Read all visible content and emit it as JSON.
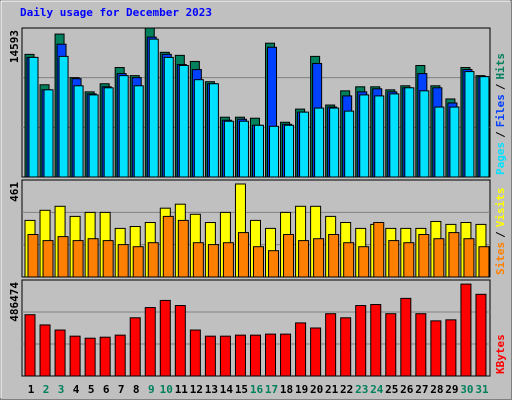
{
  "chart_data": [
    {
      "type": "bar",
      "title": "Daily usage for December 2023",
      "legend_separator": "/",
      "ylim": [
        0,
        14593
      ],
      "yticks": [
        14593
      ],
      "series": [
        {
          "name": "Hits",
          "color": "#00805c",
          "values": [
            12012,
            9034,
            13998,
            9729,
            8339,
            9133,
            10721,
            9927,
            14593,
            12210,
            11913,
            11317,
            9332,
            5857,
            5857,
            5758,
            13104,
            5361,
            6651,
            11813,
            7048,
            8438,
            8835,
            8835,
            8537,
            8934,
            10920,
            8934,
            7644,
            10721,
            9927
          ]
        },
        {
          "name": "Files",
          "color": "#0040ff",
          "values": [
            11714,
            8537,
            13005,
            9630,
            8140,
            8835,
            10126,
            9729,
            13700,
            12012,
            11019,
            10523,
            9133,
            5559,
            5659,
            5063,
            12707,
            5162,
            6353,
            11118,
            6850,
            7942,
            8339,
            8636,
            8339,
            8736,
            10126,
            8736,
            7247,
            10523,
            9828
          ]
        },
        {
          "name": "Pages",
          "color": "#00e0ff",
          "values": [
            11714,
            8537,
            11813,
            8934,
            8041,
            8736,
            9927,
            8934,
            13501,
            11714,
            10920,
            9530,
            9133,
            5460,
            5460,
            5063,
            4964,
            5063,
            6353,
            6750,
            6750,
            6452,
            8041,
            7942,
            8140,
            8736,
            8438,
            6850,
            6850,
            10324,
            9828
          ]
        }
      ]
    },
    {
      "type": "bar",
      "legend_separator": "/",
      "ylim": [
        0,
        461
      ],
      "yticks": [
        461
      ],
      "series": [
        {
          "name": "Visits",
          "color": "#ffff00",
          "values": [
            269,
            317,
            336,
            288,
            307,
            307,
            231,
            240,
            259,
            327,
            346,
            298,
            259,
            307,
            442,
            269,
            231,
            307,
            336,
            336,
            288,
            259,
            231,
            250,
            231,
            231,
            231,
            264,
            250,
            259,
            250
          ]
        },
        {
          "name": "Sites",
          "color": "#ff8000",
          "values": [
            202,
            173,
            192,
            173,
            182,
            173,
            154,
            144,
            163,
            288,
            269,
            163,
            154,
            163,
            211,
            144,
            125,
            202,
            173,
            182,
            202,
            163,
            144,
            259,
            173,
            163,
            202,
            182,
            211,
            182,
            144
          ]
        }
      ]
    },
    {
      "type": "bar",
      "ylim": [
        0,
        486474
      ],
      "yticks": [
        486474
      ],
      "categories": [
        "1",
        "2",
        "3",
        "4",
        "5",
        "6",
        "7",
        "8",
        "9",
        "10",
        "11",
        "12",
        "13",
        "14",
        "15",
        "16",
        "17",
        "18",
        "19",
        "20",
        "21",
        "22",
        "23",
        "24",
        "25",
        "26",
        "27",
        "28",
        "29",
        "30",
        "31"
      ],
      "category_colors": [
        "#000000",
        "#00805c",
        "#00805c",
        "#000000",
        "#000000",
        "#000000",
        "#000000",
        "#000000",
        "#00805c",
        "#00805c",
        "#000000",
        "#000000",
        "#000000",
        "#000000",
        "#000000",
        "#00805c",
        "#00805c",
        "#000000",
        "#000000",
        "#000000",
        "#000000",
        "#000000",
        "#00805c",
        "#00805c",
        "#000000",
        "#000000",
        "#000000",
        "#000000",
        "#000000",
        "#00805c",
        "#00805c"
      ],
      "series": [
        {
          "name": "KBytes",
          "color": "#ff0000",
          "values": [
            310515,
            258763,
            232887,
            201836,
            191486,
            196661,
            207012,
            294990,
            346743,
            382971,
            357094,
            232887,
            201836,
            201836,
            207012,
            207012,
            212187,
            212187,
            269113,
            243238,
            315690,
            294990,
            357094,
            362269,
            315690,
            393321,
            315690,
            279465,
            284641,
            465773,
            414021
          ]
        }
      ]
    }
  ]
}
